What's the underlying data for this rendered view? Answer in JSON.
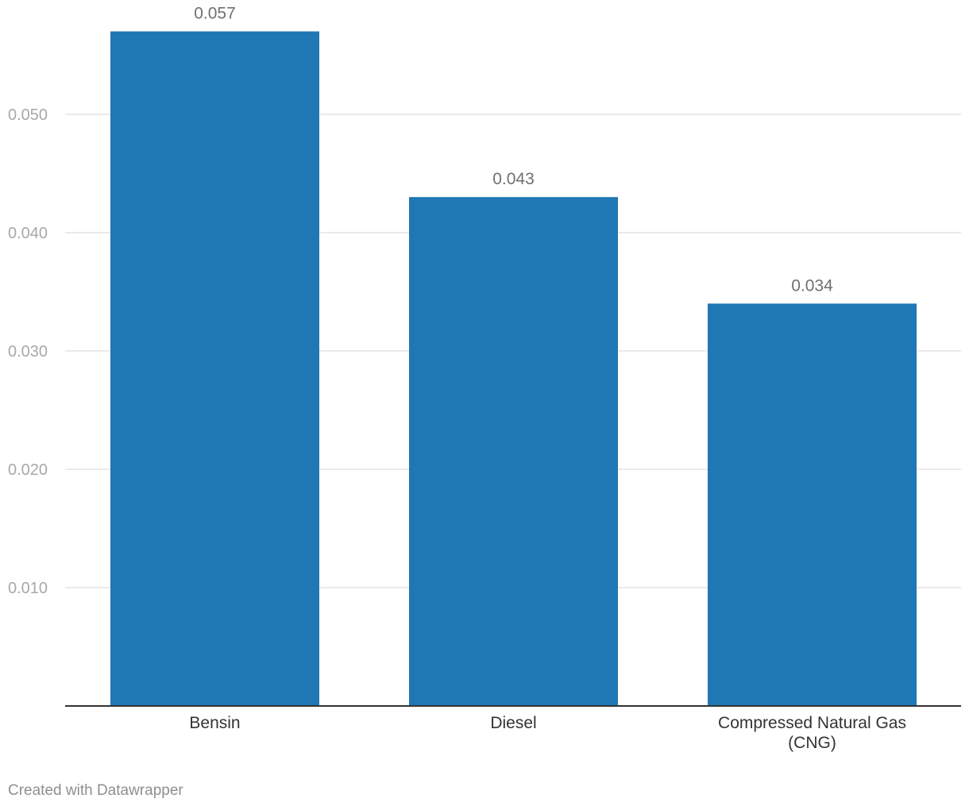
{
  "chart_data": {
    "type": "bar",
    "categories": [
      "Bensin",
      "Diesel",
      "Compressed Natural Gas (CNG)"
    ],
    "category_lines": [
      [
        "Bensin"
      ],
      [
        "Diesel"
      ],
      [
        "Compressed Natural Gas",
        "(CNG)"
      ]
    ],
    "values": [
      0.057,
      0.043,
      0.034
    ],
    "value_labels": [
      "0.057",
      "0.043",
      "0.034"
    ],
    "yticks": [
      0.01,
      0.02,
      0.03,
      0.04,
      0.05
    ],
    "ytick_labels": [
      "0.010",
      "0.020",
      "0.030",
      "0.040",
      "0.050"
    ],
    "ylim": [
      0,
      0.0567
    ],
    "grid": true,
    "bar_color": "#1f77b4"
  },
  "footer": {
    "credit": "Created with Datawrapper"
  }
}
